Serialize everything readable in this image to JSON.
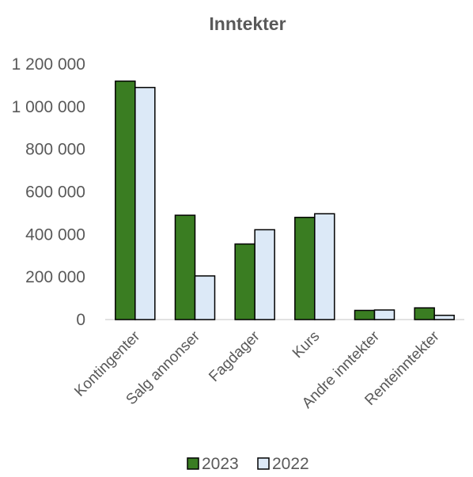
{
  "chart_data": {
    "type": "bar",
    "title": "Inntekter",
    "xlabel": "",
    "ylabel": "",
    "categories": [
      "Kontingenter",
      "Salg annonser",
      "Fagdager",
      "Kurs",
      "Andre inntekter",
      "Renteinntekter"
    ],
    "series": [
      {
        "name": "2023",
        "color": "#3a7d22",
        "values": [
          1120000,
          490000,
          355000,
          480000,
          43000,
          55000
        ]
      },
      {
        "name": "2022",
        "color": "#dce9f7",
        "values": [
          1090000,
          205000,
          422000,
          497000,
          45000,
          20000
        ]
      }
    ],
    "ylim": [
      0,
      1200000
    ],
    "yticks": [
      0,
      200000,
      400000,
      600000,
      800000,
      1000000,
      1200000
    ],
    "ytick_labels": [
      "0",
      "200 000",
      "400 000",
      "600 000",
      "800 000",
      "1 000 000",
      "1 200 000"
    ],
    "grid": false,
    "legend_position": "bottom",
    "bar_border_color": "#000000"
  }
}
